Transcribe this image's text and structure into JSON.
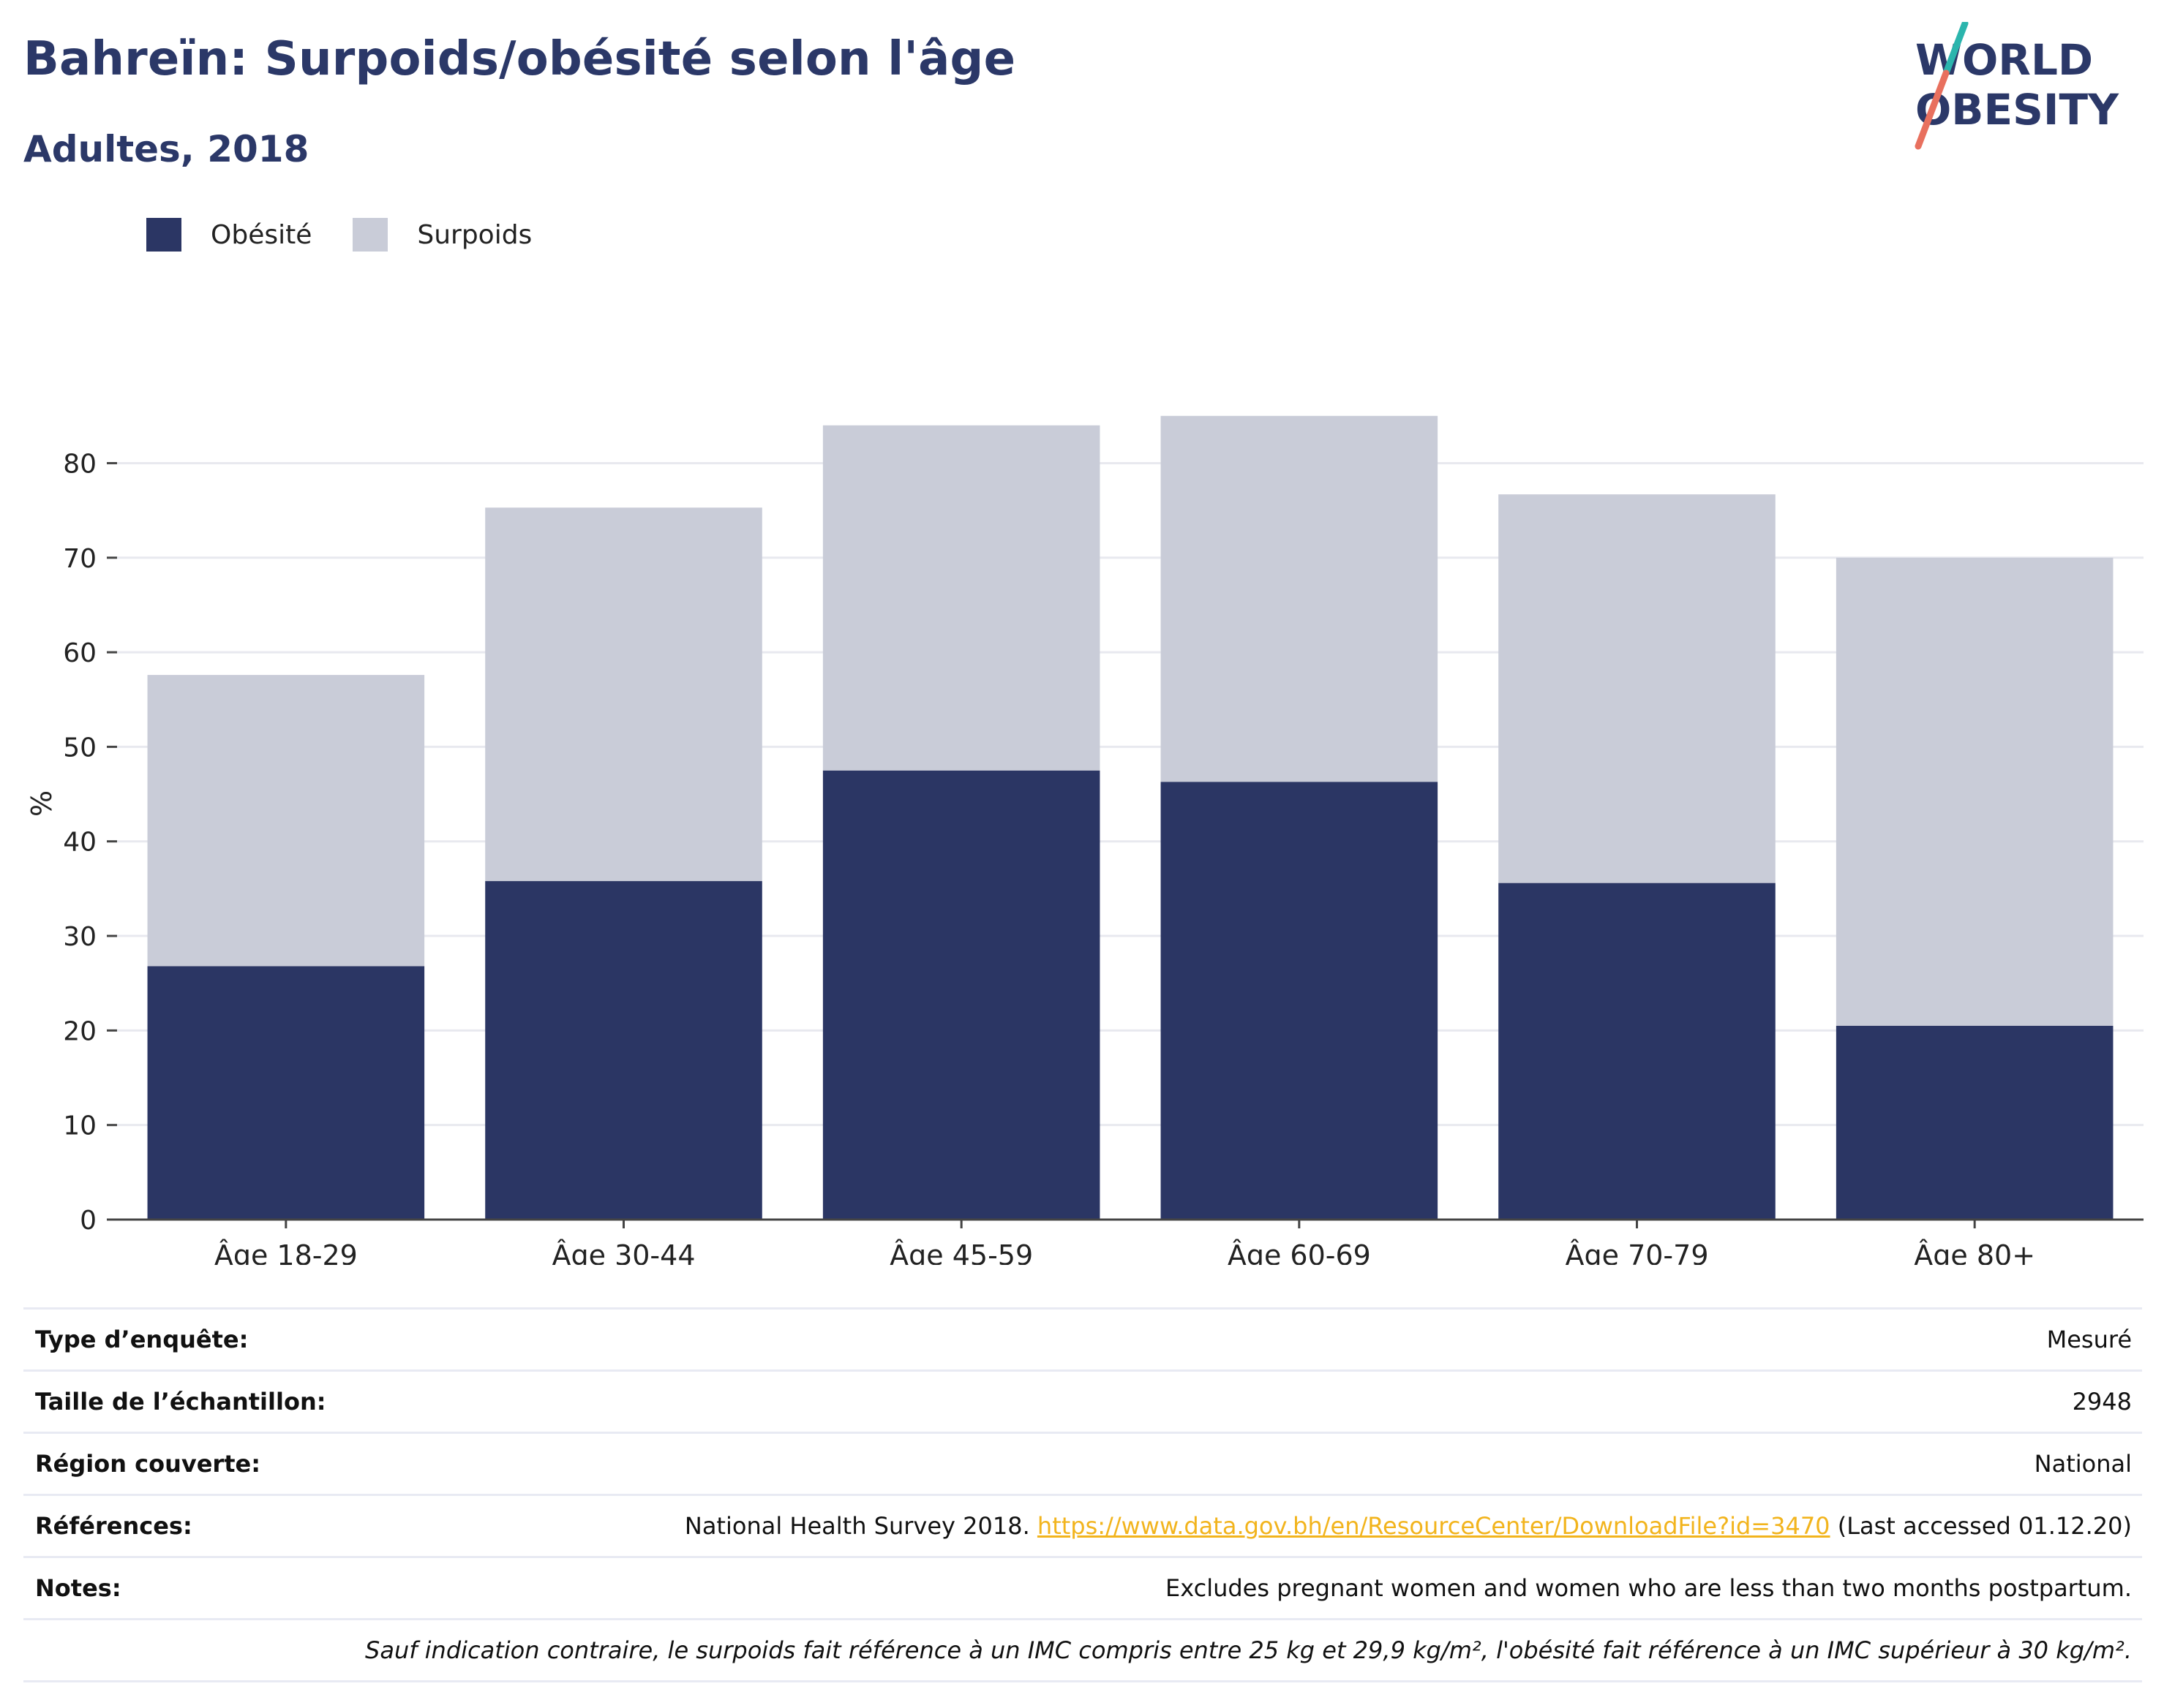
{
  "header": {
    "title": "Bahreïn: Surpoids/obésité selon l'âge",
    "subtitle": "Adultes, 2018"
  },
  "logo": {
    "line1": "WORLD",
    "line2": "OBESITY",
    "colors": {
      "text": "#2b3868",
      "slash_top": "#2bb5ad",
      "slash_bottom": "#e8705e"
    }
  },
  "legend": [
    {
      "label": "Obésité",
      "color": "#2b3664"
    },
    {
      "label": "Surpoids",
      "color": "#c9ccd8"
    }
  ],
  "chart_data": {
    "type": "bar",
    "stacked": true,
    "categories": [
      "Âge 18-29",
      "Âge 30-44",
      "Âge 45-59",
      "Âge 60-69",
      "Âge 70-79",
      "Âge 80+"
    ],
    "series": [
      {
        "name": "Obésité",
        "color": "#2b3664",
        "values": [
          26.8,
          35.8,
          47.5,
          46.3,
          35.6,
          20.5
        ]
      },
      {
        "name": "Surpoids",
        "color": "#c9ccd8",
        "values": [
          30.8,
          39.5,
          36.5,
          38.7,
          41.1,
          49.5
        ]
      }
    ],
    "totals": [
      57.6,
      75.3,
      84.0,
      85.0,
      76.7,
      70.0
    ],
    "ylabel": "%",
    "xlabel": "",
    "ylim": [
      0,
      88
    ],
    "yticks": [
      0,
      10,
      20,
      30,
      40,
      50,
      60,
      70,
      80
    ],
    "grid": true,
    "legend_position": "top-left"
  },
  "info": {
    "rows": [
      {
        "label": "Type d’enquête:",
        "value": "Mesuré"
      },
      {
        "label": "Taille de l’échantillon:",
        "value": "2948"
      },
      {
        "label": "Région couverte:",
        "value": "National"
      }
    ],
    "references": {
      "label": "Références:",
      "prefix": "National Health Survey 2018. ",
      "link": "https://www.data.gov.bh/en/ResourceCenter/DownloadFile?id=3470",
      "suffix": " (Last accessed 01.12.20)"
    },
    "notes": {
      "label": "Notes:",
      "value": "Excludes pregnant women and women who are less than two months postpartum."
    },
    "footnote": "Sauf indication contraire, le surpoids fait référence à un IMC compris entre 25 kg et 29,9 kg/m², l'obésité fait référence à un IMC supérieur à 30 kg/m²."
  }
}
